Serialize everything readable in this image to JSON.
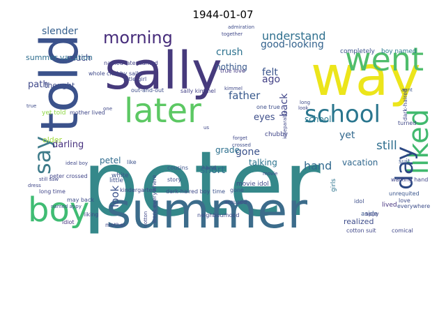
{
  "title": "1944-01-07",
  "palette": "viridis",
  "words": [
    {
      "text": "peter",
      "color": "#35888a"
    },
    {
      "text": "summer",
      "color": "#3c6c8b"
    },
    {
      "text": "sally",
      "color": "#463a7c"
    },
    {
      "text": "way",
      "color": "#ece51b"
    },
    {
      "text": "told",
      "color": "#3b528b"
    },
    {
      "text": "went",
      "color": "#4fbd6c"
    },
    {
      "text": "later",
      "color": "#5cc863"
    },
    {
      "text": "school",
      "color": "#2a768e"
    },
    {
      "text": "liked",
      "color": "#41b96e"
    },
    {
      "text": "boy",
      "color": "#3fbc73"
    },
    {
      "text": "morning",
      "color": "#472d7b"
    },
    {
      "text": "say",
      "color": "#3e7b8a"
    },
    {
      "text": "day",
      "color": "#2c4883"
    },
    {
      "text": "understand",
      "color": "#2e6f8e"
    },
    {
      "text": "good-looking",
      "color": "#33628d"
    },
    {
      "text": "slender",
      "color": "#355f8d"
    },
    {
      "text": "crush",
      "color": "#2c718e"
    },
    {
      "text": "father",
      "color": "#38598c"
    },
    {
      "text": "school",
      "color": "#2a788e"
    },
    {
      "text": "still",
      "color": "#2e6e8e"
    },
    {
      "text": "hand",
      "color": "#30698e"
    },
    {
      "text": "short",
      "color": "#2e6f8e"
    },
    {
      "text": "gone",
      "color": "#3b528b"
    },
    {
      "text": "look",
      "color": "#3b518b"
    },
    {
      "text": "path",
      "color": "#3f4889"
    },
    {
      "text": "darling",
      "color": "#46307e"
    },
    {
      "text": "petel",
      "color": "#2f6b8e"
    },
    {
      "text": "back",
      "color": "#404588"
    },
    {
      "text": "yet",
      "color": "#31688e"
    },
    {
      "text": "vacation",
      "color": "#31688e"
    },
    {
      "text": "felt",
      "color": "#3a548c"
    },
    {
      "text": "ago",
      "color": "#424086"
    },
    {
      "text": "thought",
      "color": "#3e4c8a"
    },
    {
      "text": "eyes",
      "color": "#3d4e8a"
    },
    {
      "text": "talking",
      "color": "#2b748e"
    },
    {
      "text": "grade",
      "color": "#2d708e"
    },
    {
      "text": "nothing",
      "color": "#38598c"
    },
    {
      "text": "realized",
      "color": "#3e4c8a"
    },
    {
      "text": "older",
      "color": "#9fda3a"
    },
    {
      "text": "much",
      "color": "#3f4788"
    },
    {
      "text": "summer vacation",
      "color": "#2e6d8e"
    },
    {
      "text": "completely",
      "color": "#3b528b"
    },
    {
      "text": "boy named",
      "color": "#2a788e"
    },
    {
      "text": "out-and-out",
      "color": "#3d4e8a"
    },
    {
      "text": "sally kimmel",
      "color": "#424086"
    },
    {
      "text": "true love",
      "color": "#443a83"
    },
    {
      "text": "little girl",
      "color": "#3f4788"
    },
    {
      "text": "kindergarten",
      "color": "#3f4788"
    },
    {
      "text": "dark-haired boy",
      "color": "#3e4a89"
    },
    {
      "text": "time",
      "color": "#3b528b"
    },
    {
      "text": "lived",
      "color": "#46337f"
    },
    {
      "text": "movie idol",
      "color": "#3e4a89"
    },
    {
      "text": "cotton suit",
      "color": "#3f4788"
    },
    {
      "text": "comical",
      "color": "#3f4788"
    },
    {
      "text": "girls",
      "color": "#2c738e"
    },
    {
      "text": "idol",
      "color": "#3d4e8a"
    },
    {
      "text": "aside",
      "color": "#39558c"
    },
    {
      "text": "white",
      "color": "#3b528b"
    },
    {
      "text": "little",
      "color": "#3d4e8a"
    },
    {
      "text": "mother",
      "color": "#3f4788"
    },
    {
      "text": "liking",
      "color": "#3f4889"
    },
    {
      "text": "idiot",
      "color": "#46327e"
    },
    {
      "text": "long time",
      "color": "#404588"
    },
    {
      "text": "may back",
      "color": "#3e4c8a"
    },
    {
      "text": "chubby",
      "color": "#404588"
    },
    {
      "text": "whole",
      "color": "#3e4989"
    },
    {
      "text": "chubby sally",
      "color": "#3f4889"
    },
    {
      "text": "named later turned",
      "color": "#424086"
    },
    {
      "text": "together",
      "color": "#3f4788"
    },
    {
      "text": "admiration",
      "color": "#3e4c8a"
    },
    {
      "text": "story",
      "color": "#3d4e8a"
    },
    {
      "text": "cousins",
      "color": "#3b518b"
    },
    {
      "text": "hand",
      "color": "#3f4889"
    },
    {
      "text": "unrequited",
      "color": "#39558c"
    },
    {
      "text": "everywhere",
      "color": "#3d4e8a"
    },
    {
      "text": "love",
      "color": "#3e4c8a"
    },
    {
      "text": "aunt",
      "color": "#39558c"
    },
    {
      "text": "suit",
      "color": "#39558c"
    },
    {
      "text": "turned",
      "color": "#3f4788"
    },
    {
      "text": "dark-haired",
      "color": "#3f4889"
    },
    {
      "text": "walking hand",
      "color": "#404588"
    },
    {
      "text": "one true",
      "color": "#3d4e8a"
    },
    {
      "text": "gone",
      "color": "#3b528b"
    },
    {
      "text": "aroused",
      "color": "#3e4c8a"
    },
    {
      "text": "inseparable",
      "color": "#3f4788"
    },
    {
      "text": "peter crossed",
      "color": "#404588"
    },
    {
      "text": "ideal boy",
      "color": "#3f4889"
    },
    {
      "text": "went everywhere",
      "color": "#3e4c8a"
    },
    {
      "text": "neighbourhood",
      "color": "#3e4a89"
    },
    {
      "text": "yet told",
      "color": "#8fd744"
    },
    {
      "text": "mother lived",
      "color": "#3f4788"
    },
    {
      "text": "like",
      "color": "#3b528b"
    },
    {
      "text": "crossed",
      "color": "#3e4c8a"
    },
    {
      "text": "forget",
      "color": "#3f4889"
    },
    {
      "text": "appy",
      "color": "#3f4788"
    },
    {
      "text": "named appy",
      "color": "#3b528b"
    },
    {
      "text": "still saw",
      "color": "#3f4788"
    },
    {
      "text": "dress",
      "color": "#3f4788"
    },
    {
      "text": "true",
      "color": "#3e4c8a"
    },
    {
      "text": "look",
      "color": "#3f4788"
    },
    {
      "text": "long",
      "color": "#3e4c8a"
    },
    {
      "text": "kimmel",
      "color": "#3f4889"
    },
    {
      "text": "us",
      "color": "#3f4788"
    },
    {
      "text": "one",
      "color": "#3f4788"
    },
    {
      "text": "movie",
      "color": "#3e4a89"
    },
    {
      "text": "cotton",
      "color": "#3f4788"
    }
  ]
}
